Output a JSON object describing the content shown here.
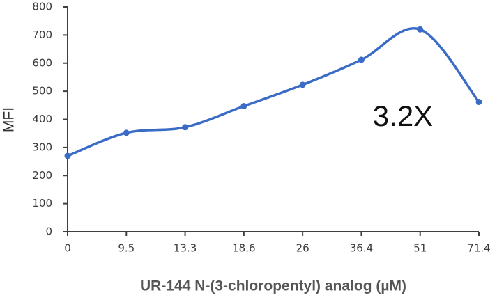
{
  "chart_data": {
    "type": "line",
    "annotation": "3.2X",
    "xlabel": "UR-144 N-(3-chloropentyl) analog (µM)",
    "ylabel": "MFI",
    "categories": [
      "0",
      "9.5",
      "13.3",
      "18.6",
      "26",
      "36.4",
      "51",
      "71.4"
    ],
    "series": [
      {
        "color": "#3a6cc6",
        "values": [
          270,
          352,
          372,
          447,
          523,
          612,
          720,
          462
        ]
      }
    ],
    "ylim": [
      0,
      800
    ],
    "yticks": [
      0,
      100,
      200,
      300,
      400,
      500,
      600,
      700,
      800
    ],
    "smooth": true,
    "markers": true
  }
}
